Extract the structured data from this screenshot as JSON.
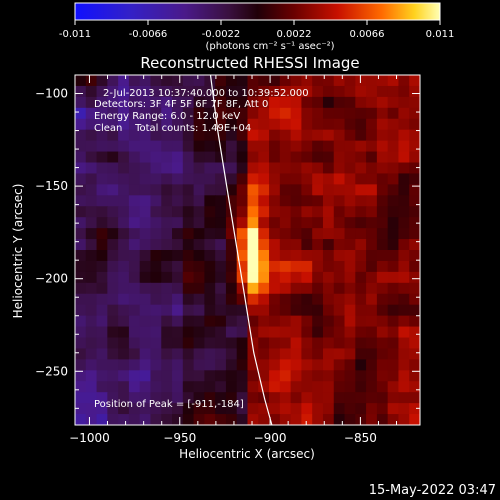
{
  "colorbar": {
    "tick_labels": [
      "-0.011",
      "-0.0066",
      "-0.0022",
      "0.0022",
      "0.0066",
      "0.011"
    ],
    "units_text": "(photons cm⁻² s⁻¹ asec⁻²)"
  },
  "title": "Reconstructed RHESSI Image",
  "annotation": {
    "line1": "2-Jul-2013 10:37:40.000 to 10:39:52.000",
    "line2": "Detectors: 3F 4F 5F 6F 7F 8F, Att 0",
    "line3": "Energy Range: 6.0 - 12.0 keV",
    "line4": "Clean    Total counts: 1.49E+04",
    "peak_label": "Position of Peak = [-911,-184]"
  },
  "timestamp": "15-May-2022 03:47",
  "chart_data": {
    "type": "heatmap",
    "title": "Reconstructed RHESSI Image",
    "xlabel": "Heliocentric X (arcsec)",
    "ylabel": "Heliocentric Y (arcsec)",
    "xlim": [
      -1008,
      -817
    ],
    "ylim": [
      -279,
      -90
    ],
    "x_ticks": [
      -1000,
      -950,
      -900,
      -850
    ],
    "y_ticks": [
      -100,
      -150,
      -200,
      -250
    ],
    "color_range": [
      -0.011,
      0.011
    ],
    "colormap": "blue-purple-red-yellow-white",
    "peak": {
      "x": -911,
      "y": -184
    },
    "limb_curve": [
      [
        -933,
        -90
      ],
      [
        -929,
        -120
      ],
      [
        -924,
        -150
      ],
      [
        -919,
        -180
      ],
      [
        -914,
        -210
      ],
      [
        -909,
        -240
      ],
      [
        -903,
        -265
      ],
      [
        -899,
        -279
      ]
    ]
  },
  "colors": {
    "background": "#000000",
    "text": "#ffffff",
    "limb": "#ffffff"
  }
}
